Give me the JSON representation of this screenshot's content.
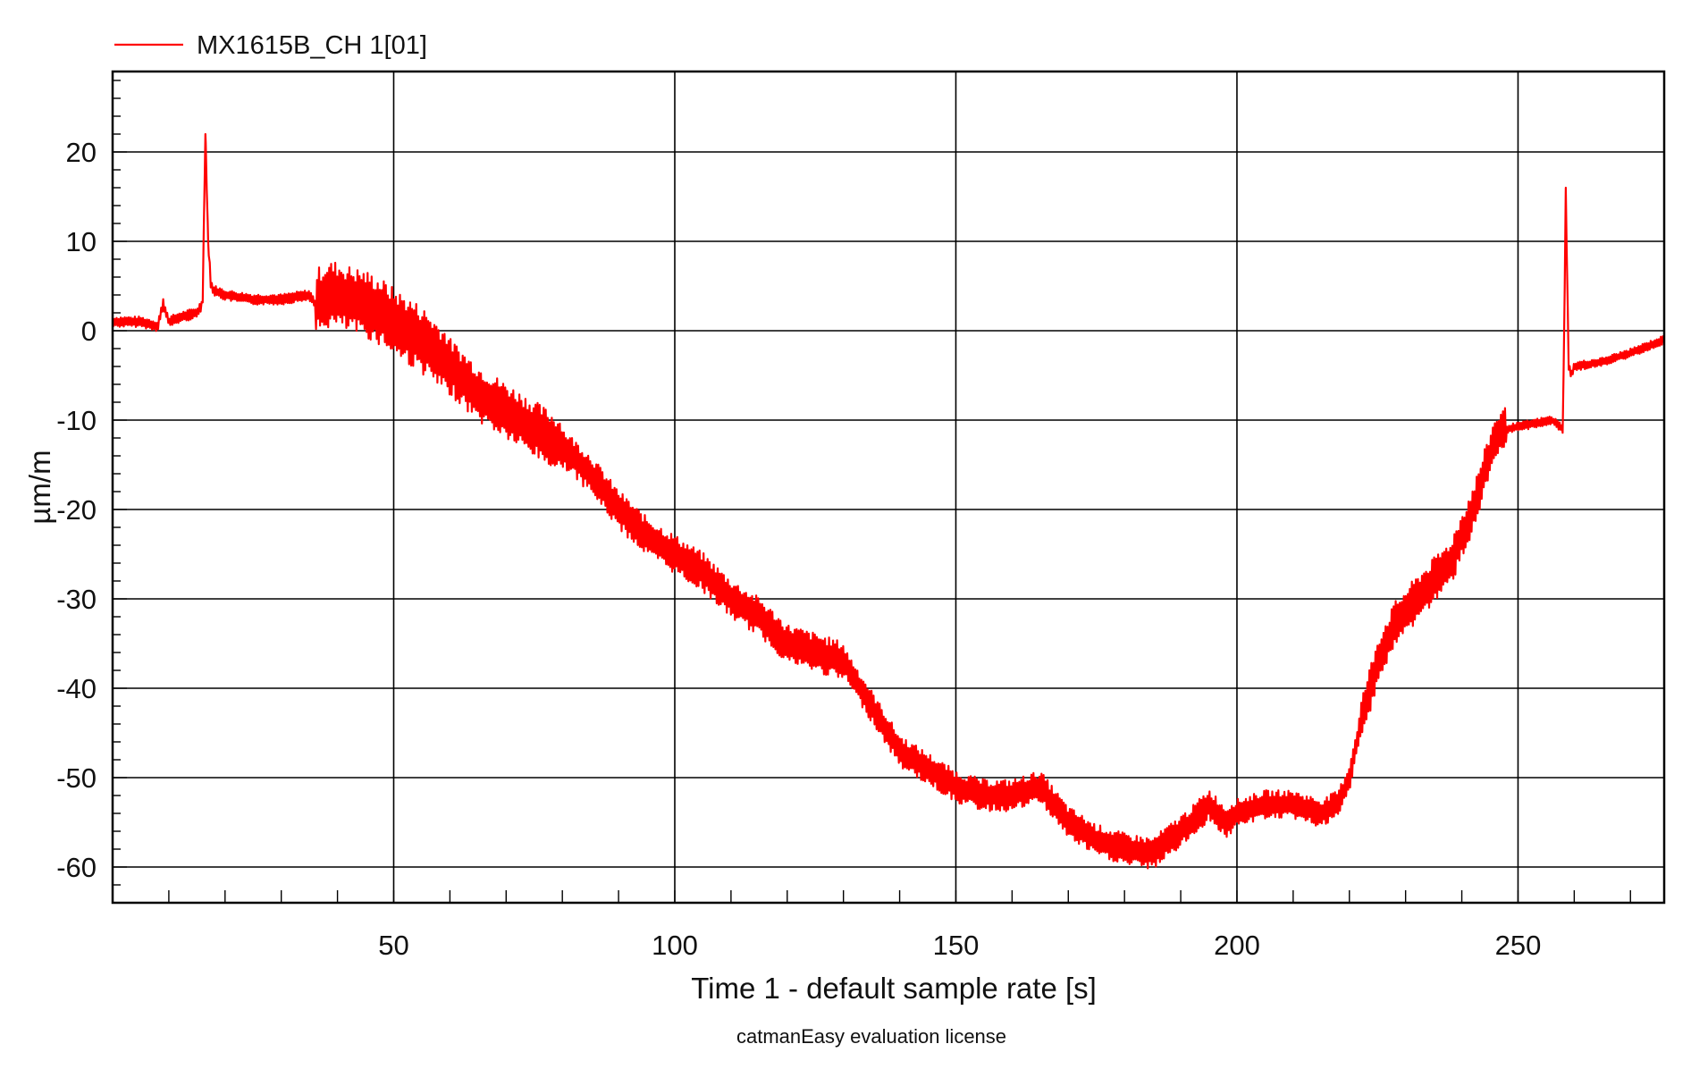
{
  "chart_data": {
    "type": "line",
    "legend": {
      "position": "top-left",
      "entries": [
        "MX1615B_CH 1[01]"
      ]
    },
    "xlabel": "Time  1 - default sample rate  [s]",
    "ylabel": "µm/m",
    "footer": "catmanEasy evaluation license",
    "grid": true,
    "xlim": [
      0,
      276
    ],
    "ylim": [
      -64,
      29
    ],
    "x_ticks": [
      50,
      100,
      150,
      200,
      250
    ],
    "y_ticks": [
      20,
      10,
      0,
      -10,
      -20,
      -30,
      -40,
      -50,
      -60
    ],
    "series": [
      {
        "name": "MX1615B_CH 1[01]",
        "color": "#ff0000",
        "x": [
          0,
          5,
          8,
          9,
          10,
          12,
          15,
          16,
          16.5,
          17,
          17.5,
          18,
          20,
          25,
          30,
          35,
          36,
          38,
          40,
          42,
          45,
          48,
          50,
          55,
          60,
          65,
          70,
          75,
          80,
          85,
          90,
          95,
          100,
          105,
          110,
          115,
          120,
          125,
          130,
          135,
          140,
          145,
          150,
          155,
          160,
          165,
          170,
          175,
          180,
          185,
          188,
          192,
          195,
          198,
          200,
          205,
          210,
          215,
          218,
          220,
          222,
          225,
          228,
          232,
          238,
          242,
          246,
          248,
          252,
          256,
          258,
          258.5,
          259,
          259.5,
          260,
          265,
          270,
          276
        ],
        "y": [
          1,
          1,
          0.5,
          3,
          1,
          1.5,
          2,
          3,
          22,
          10,
          5,
          4.5,
          4,
          3.5,
          3.5,
          4,
          3,
          4,
          4,
          3.5,
          3,
          2,
          1,
          -1,
          -4,
          -7,
          -9,
          -11,
          -13,
          -16,
          -20,
          -23,
          -25,
          -27,
          -30,
          -32,
          -35,
          -36,
          -37,
          -42,
          -47,
          -49,
          -51,
          -52,
          -52,
          -51,
          -55,
          -57,
          -58,
          -58.5,
          -57,
          -55,
          -53,
          -55,
          -54,
          -53,
          -53,
          -54,
          -53,
          -50,
          -44,
          -37,
          -33,
          -30,
          -26,
          -20,
          -12,
          -11,
          -10.5,
          -10,
          -11,
          16,
          -4,
          -5,
          -4,
          -3.5,
          -2.5,
          -1
        ]
      }
    ]
  }
}
